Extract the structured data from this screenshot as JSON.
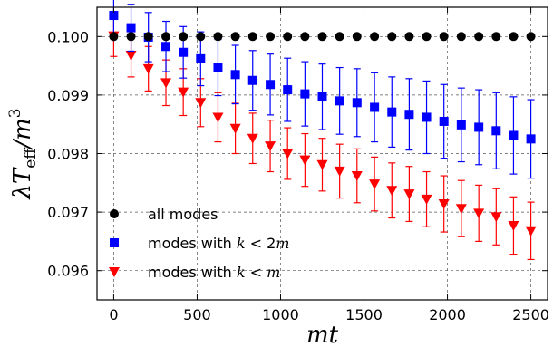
{
  "chart_data": {
    "type": "scatter",
    "xlabel": "mt",
    "ylabel_parts": [
      "λT",
      "eff",
      "/m",
      "3"
    ],
    "xlim": [
      -100,
      2600
    ],
    "ylim": [
      0.0955,
      0.1005
    ],
    "xticks": [
      0,
      500,
      1000,
      1500,
      2000,
      2500
    ],
    "xtick_labels": [
      "0",
      "500",
      "1000",
      "1500",
      "2000",
      "2500"
    ],
    "yticks": [
      0.096,
      0.097,
      0.098,
      0.099,
      0.1
    ],
    "ytick_labels": [
      "0.096",
      "0.097",
      "0.098",
      "0.099",
      "0.100"
    ],
    "grid": true,
    "legend_position": "lower-left",
    "x": [
      0,
      104,
      208,
      313,
      417,
      521,
      625,
      729,
      833,
      938,
      1042,
      1146,
      1250,
      1354,
      1458,
      1563,
      1667,
      1771,
      1875,
      1979,
      2083,
      2188,
      2292,
      2396,
      2500
    ],
    "series": [
      {
        "name": "all modes",
        "legend_parts": [
          "all modes"
        ],
        "color": "#000000",
        "marker": "circle",
        "values": [
          0.1,
          0.1,
          0.1,
          0.1,
          0.1,
          0.1,
          0.1,
          0.1,
          0.1,
          0.1,
          0.1,
          0.1,
          0.1,
          0.1,
          0.1,
          0.1,
          0.1,
          0.1,
          0.1,
          0.1,
          0.1,
          0.1,
          0.1,
          0.1,
          0.1
        ],
        "errors": null
      },
      {
        "name": "modes with k < 2m",
        "legend_parts": [
          "modes with ",
          "k",
          " < 2",
          "m"
        ],
        "color": "#0000ff",
        "marker": "square",
        "values": [
          0.10036,
          0.10015,
          0.09999,
          0.09983,
          0.09973,
          0.09962,
          0.09947,
          0.09935,
          0.09925,
          0.09918,
          0.09909,
          0.09902,
          0.09897,
          0.0989,
          0.09887,
          0.09879,
          0.09871,
          0.09867,
          0.09862,
          0.09855,
          0.09849,
          0.09845,
          0.09839,
          0.09831,
          0.09825
        ],
        "errors": [
          0.0004,
          0.0004,
          0.00042,
          0.00043,
          0.00044,
          0.00046,
          0.00048,
          0.0005,
          0.00051,
          0.00052,
          0.00054,
          0.00055,
          0.00056,
          0.00057,
          0.00058,
          0.00059,
          0.0006,
          0.00061,
          0.00062,
          0.00063,
          0.00063,
          0.00064,
          0.00065,
          0.00066,
          0.00067
        ]
      },
      {
        "name": "modes with k < m",
        "legend_parts": [
          "modes with ",
          "k",
          " < ",
          "m"
        ],
        "color": "#ff0000",
        "marker": "triangle-down",
        "values": [
          0.10001,
          0.09968,
          0.09945,
          0.09921,
          0.09905,
          0.09887,
          0.09862,
          0.09843,
          0.09826,
          0.09813,
          0.098,
          0.09789,
          0.09781,
          0.0977,
          0.09762,
          0.09748,
          0.09737,
          0.09731,
          0.09722,
          0.09714,
          0.09706,
          0.09698,
          0.09692,
          0.09677,
          0.09668
        ],
        "errors": [
          0.00035,
          0.00037,
          0.00038,
          0.00039,
          0.0004,
          0.00041,
          0.00042,
          0.00043,
          0.00043,
          0.00044,
          0.00044,
          0.00045,
          0.00045,
          0.00046,
          0.00046,
          0.00046,
          0.00047,
          0.00047,
          0.00047,
          0.00048,
          0.00048,
          0.00048,
          0.00048,
          0.00049,
          0.00049
        ]
      }
    ]
  }
}
